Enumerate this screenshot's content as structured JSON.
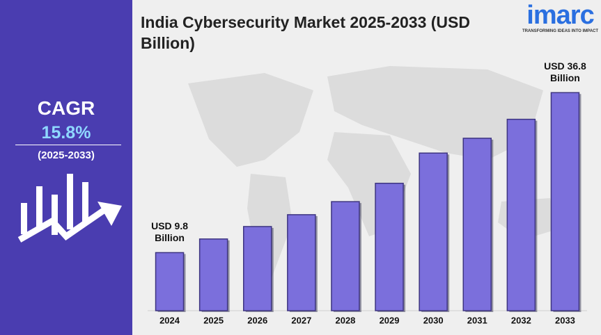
{
  "brand": {
    "logo": "imarc",
    "tagline": "TRANSFORMING IDEAS INTO IMPACT"
  },
  "cagr": {
    "label": "CAGR",
    "value": "15.8%",
    "period": "(2025-2033)"
  },
  "chart_data": {
    "type": "bar",
    "title": "India Cybersecurity Market 2025-2033 (USD Billion)",
    "categories": [
      "2024",
      "2025",
      "2026",
      "2027",
      "2028",
      "2029",
      "2030",
      "2031",
      "2032",
      "2033"
    ],
    "values": [
      9.8,
      12.1,
      14.2,
      16.2,
      18.4,
      21.5,
      26.6,
      29.1,
      32.3,
      36.8
    ],
    "value_labels": [
      "USD 9.8 Billion",
      null,
      null,
      null,
      null,
      null,
      null,
      null,
      null,
      "USD 36.8 Billion"
    ],
    "color": "#7b6fdc",
    "ylim": [
      0,
      40
    ],
    "grid": false
  }
}
